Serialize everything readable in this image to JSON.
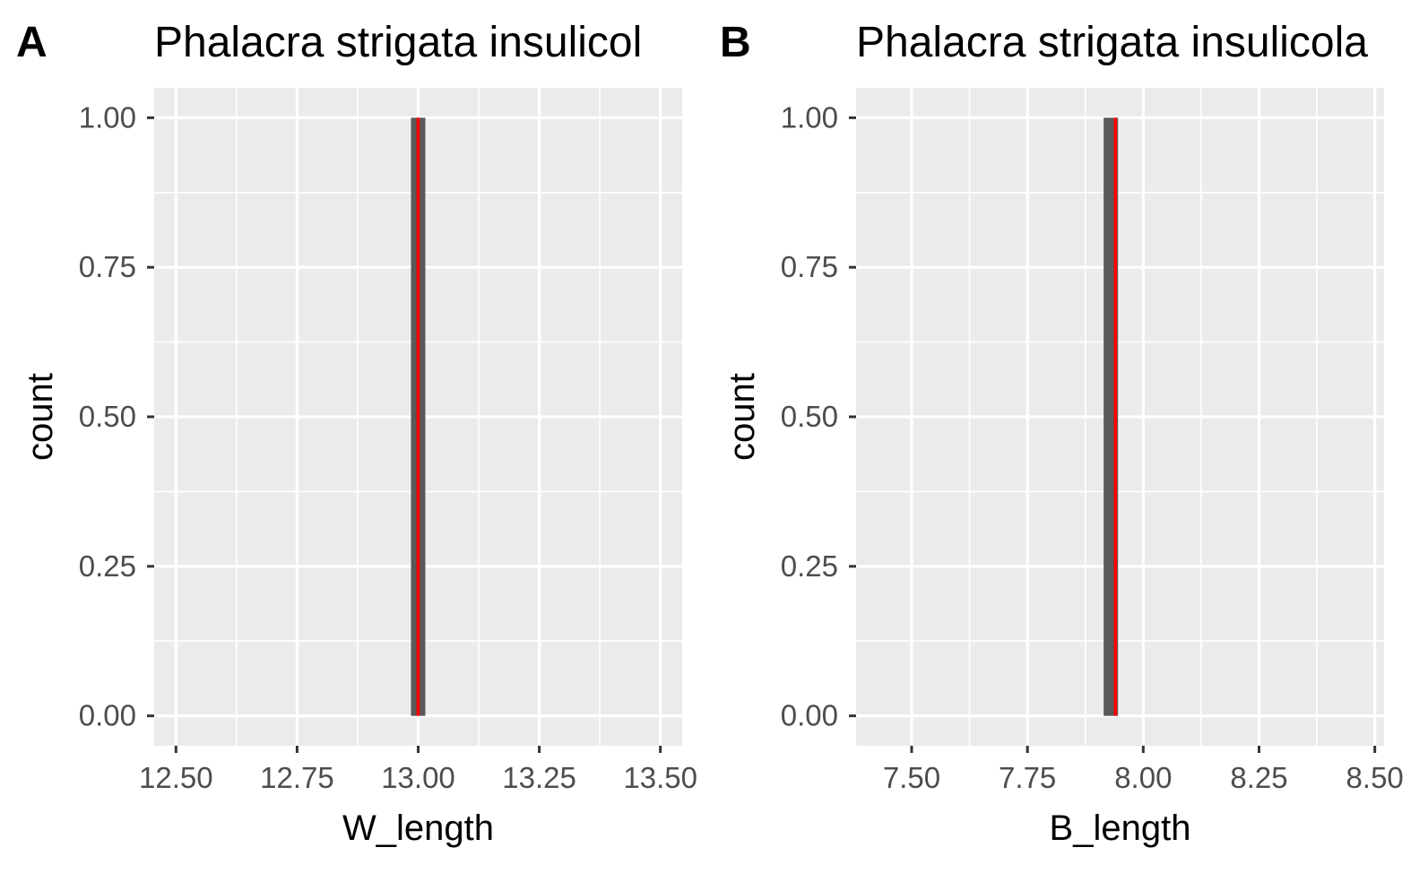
{
  "chart_data": [
    {
      "type": "histogram",
      "panel_label": "A",
      "title": "Phalacra strigata insulicol",
      "xlabel": "W_length",
      "ylabel": "count",
      "xlim": [
        12.455,
        13.545
      ],
      "ylim": [
        -0.05,
        1.05
      ],
      "x_ticks": [
        12.5,
        12.75,
        13.0,
        13.25,
        13.5
      ],
      "x_tick_labels": [
        "12.50",
        "12.75",
        "13.00",
        "13.25",
        "13.50"
      ],
      "y_ticks": [
        0,
        0.25,
        0.5,
        0.75,
        1.0
      ],
      "y_tick_labels": [
        "0.00",
        "0.25",
        "0.50",
        "0.75",
        "1.00"
      ],
      "bars": [
        {
          "x": 13.0,
          "count": 1
        }
      ],
      "vline": {
        "x": 13.0,
        "color": "#ff0000"
      },
      "bar_color": "#595959",
      "panel_bg": "#ebebeb",
      "grid": true
    },
    {
      "type": "histogram",
      "panel_label": "B",
      "title": "Phalacra strigata insulicola",
      "xlabel": "B_length",
      "ylabel": "count",
      "xlim": [
        7.38,
        8.52
      ],
      "ylim": [
        -0.05,
        1.05
      ],
      "x_ticks": [
        7.5,
        7.75,
        8.0,
        8.25,
        8.5
      ],
      "x_tick_labels": [
        "7.50",
        "7.75",
        "8.00",
        "8.25",
        "8.50"
      ],
      "y_ticks": [
        0,
        0.25,
        0.5,
        0.75,
        1.0
      ],
      "y_tick_labels": [
        "0.00",
        "0.25",
        "0.50",
        "0.75",
        "1.00"
      ],
      "bars": [
        {
          "x": 7.93,
          "count": 1
        }
      ],
      "vline": {
        "x": 7.94,
        "color": "#ff0000"
      },
      "bar_color": "#595959",
      "panel_bg": "#ebebeb",
      "grid": true
    }
  ]
}
